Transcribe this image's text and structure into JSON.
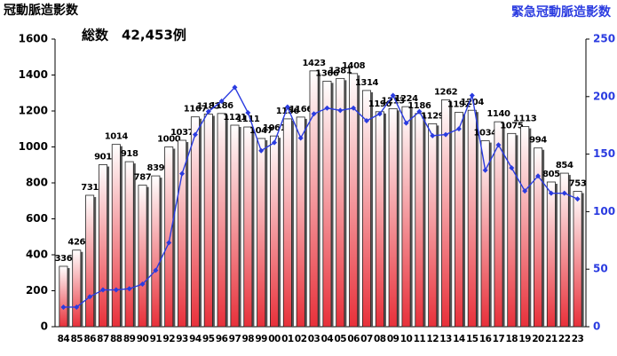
{
  "chart_data": {
    "type": "bar",
    "y_label": "冠動脈造影数",
    "subtitle": "総数　42,453例",
    "y2_label": "緊急冠動脈造影数",
    "categories": [
      "84",
      "85",
      "86",
      "87",
      "88",
      "89",
      "90",
      "91",
      "92",
      "93",
      "94",
      "95",
      "96",
      "97",
      "98",
      "99",
      "00",
      "01",
      "02",
      "03",
      "04",
      "05",
      "06",
      "07",
      "08",
      "09",
      "10",
      "11",
      "12",
      "13",
      "14",
      "15",
      "16",
      "17",
      "18",
      "19",
      "20",
      "21",
      "22",
      "23"
    ],
    "series": [
      {
        "type": "bar",
        "color": "#e8303a",
        "values": [
          336,
          426,
          731,
          901,
          1014,
          918,
          787,
          839,
          1000,
          1037,
          1167,
          1183,
          1186,
          1121,
          1111,
          1047,
          1061,
          1156,
          1166,
          1423,
          1366,
          1381,
          1408,
          1314,
          1196,
          1213,
          1224,
          1186,
          1129,
          1262,
          1192,
          1204,
          1034,
          1140,
          1075,
          1113,
          994,
          805,
          854,
          753
        ]
      },
      {
        "type": "line",
        "axis": "y2",
        "color": "#2a3be0",
        "values": [
          17,
          17,
          26,
          32,
          32,
          33,
          37,
          49,
          73,
          133,
          167,
          187,
          196,
          208,
          186,
          153,
          160,
          191,
          164,
          185,
          190,
          188,
          190,
          179,
          185,
          201,
          177,
          187,
          166,
          167,
          172,
          201,
          136,
          158,
          138,
          118,
          131,
          116,
          116,
          111
        ]
      }
    ],
    "ylim": [
      0,
      1600
    ],
    "yticks": [
      0,
      200,
      400,
      600,
      800,
      1000,
      1200,
      1400,
      1600
    ],
    "y2lim": [
      0,
      250
    ],
    "y2ticks": [
      0,
      50,
      100,
      150,
      200,
      250
    ]
  }
}
